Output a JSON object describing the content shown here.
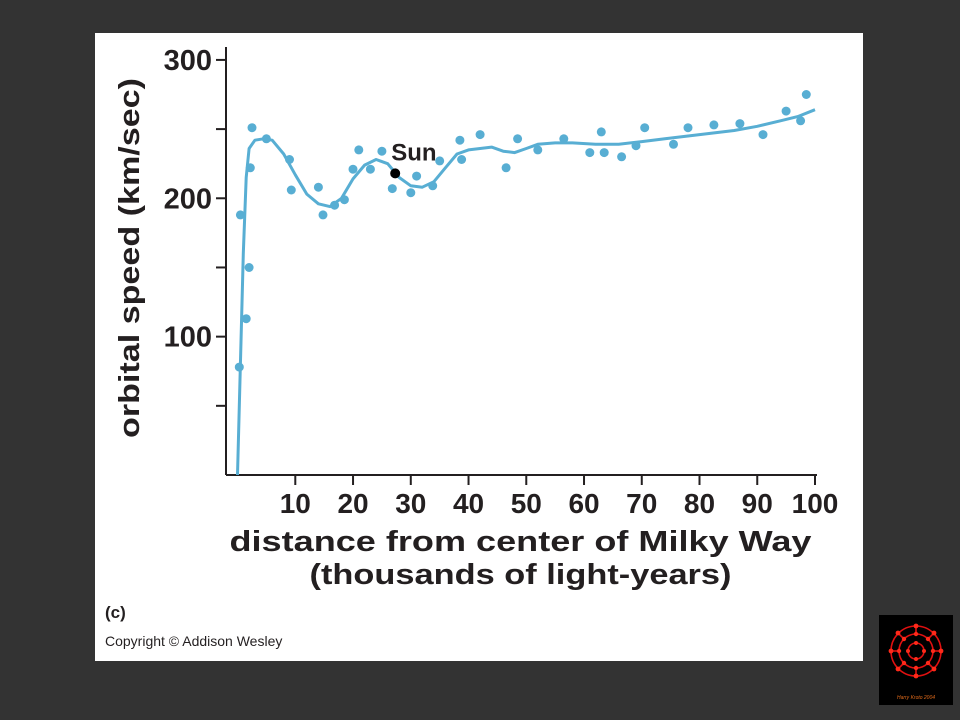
{
  "panel_label": "(c)",
  "copyright": "Copyright © Addison Wesley",
  "logo": {
    "icon": "buckyball-logo",
    "caption": "Harry Kroto 2004"
  },
  "colors": {
    "series": "#58aed3",
    "text": "#231f20",
    "sun": "#000000",
    "background": "#333333",
    "panel": "#ffffff"
  },
  "chart_data": {
    "type": "scatter",
    "title": "",
    "xlabel": "distance from center of Milky Way",
    "xlabel_line2": "(thousands of light-years)",
    "ylabel": "orbital speed (km/sec)",
    "xlim": [
      -2,
      100
    ],
    "ylim": [
      0,
      305
    ],
    "xticks": [
      10,
      20,
      30,
      40,
      50,
      60,
      70,
      80,
      90,
      100
    ],
    "yticks_major": [
      100,
      200,
      300
    ],
    "yticks_minor": [
      50,
      150,
      250
    ],
    "grid": false,
    "points": [
      [
        0.3,
        78
      ],
      [
        0.5,
        188
      ],
      [
        1.5,
        113
      ],
      [
        2,
        150
      ],
      [
        2.2,
        222
      ],
      [
        2.5,
        251
      ],
      [
        5,
        243
      ],
      [
        9,
        228
      ],
      [
        9.3,
        206
      ],
      [
        14,
        208
      ],
      [
        14.8,
        188
      ],
      [
        16.8,
        195
      ],
      [
        18.5,
        199
      ],
      [
        20,
        221
      ],
      [
        21,
        235
      ],
      [
        23,
        221
      ],
      [
        25,
        234
      ],
      [
        26.8,
        207
      ],
      [
        30,
        204
      ],
      [
        31,
        216
      ],
      [
        33.8,
        209
      ],
      [
        35,
        227
      ],
      [
        38.5,
        242
      ],
      [
        38.8,
        228
      ],
      [
        42,
        246
      ],
      [
        46.5,
        222
      ],
      [
        48.5,
        243
      ],
      [
        52,
        235
      ],
      [
        56.5,
        243
      ],
      [
        61,
        233
      ],
      [
        63,
        248
      ],
      [
        63.5,
        233
      ],
      [
        66.5,
        230
      ],
      [
        69,
        238
      ],
      [
        70.5,
        251
      ],
      [
        75.5,
        239
      ],
      [
        78,
        251
      ],
      [
        82.5,
        253
      ],
      [
        87,
        254
      ],
      [
        91,
        246
      ],
      [
        95,
        263
      ],
      [
        97.5,
        256
      ],
      [
        98.5,
        275
      ]
    ],
    "curve": [
      [
        0,
        0
      ],
      [
        0.5,
        80
      ],
      [
        1,
        160
      ],
      [
        1.5,
        215
      ],
      [
        2,
        236
      ],
      [
        3,
        242
      ],
      [
        4.5,
        243
      ],
      [
        6,
        242
      ],
      [
        8,
        232
      ],
      [
        10,
        217
      ],
      [
        12,
        203
      ],
      [
        14,
        196
      ],
      [
        16,
        194
      ],
      [
        18,
        200
      ],
      [
        20,
        214
      ],
      [
        22,
        224
      ],
      [
        24,
        228
      ],
      [
        26,
        225
      ],
      [
        28,
        215
      ],
      [
        30,
        209
      ],
      [
        32,
        208
      ],
      [
        34,
        212
      ],
      [
        36,
        222
      ],
      [
        38,
        232
      ],
      [
        40,
        235
      ],
      [
        42,
        236
      ],
      [
        44,
        237
      ],
      [
        46,
        234
      ],
      [
        48,
        233
      ],
      [
        50,
        236
      ],
      [
        52,
        239
      ],
      [
        55,
        240
      ],
      [
        58,
        240
      ],
      [
        62,
        239
      ],
      [
        66,
        239
      ],
      [
        70,
        241
      ],
      [
        74,
        243
      ],
      [
        78,
        245
      ],
      [
        82,
        247
      ],
      [
        86,
        249
      ],
      [
        90,
        252
      ],
      [
        94,
        256
      ],
      [
        97,
        259
      ],
      [
        100,
        264
      ]
    ],
    "sun": {
      "label": "Sun",
      "x": 27.3,
      "y": 218
    }
  }
}
